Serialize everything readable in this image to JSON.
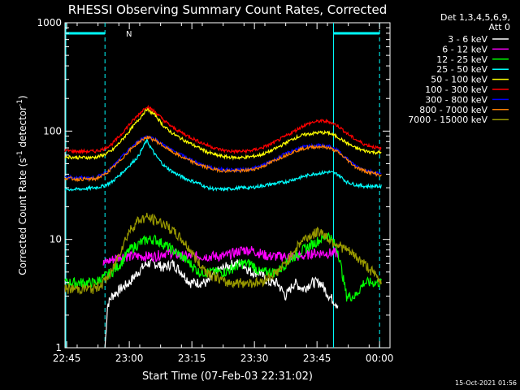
{
  "chart_data": {
    "type": "line",
    "title": "RHESSI Observing Summary Count Rates, Corrected",
    "xlabel": "Start Time (07-Feb-03 22:31:02)",
    "ylabel_main": "Corrected Count Rate (s",
    "ylabel_sup1": "-1",
    "ylabel_mid": " detector",
    "ylabel_sup2": "-1",
    "ylabel_end": ")",
    "yscale": "log",
    "ylim": [
      1,
      1000
    ],
    "xlim_minutes": [
      22.6,
      60.0
    ],
    "x_tick_labels": [
      "22:45",
      "23:00",
      "23:15",
      "23:30",
      "23:45",
      "00:00"
    ],
    "x_tick_minutes": [
      22.8,
      30.0,
      37.2,
      44.4,
      51.6,
      58.8
    ],
    "y_tick_labels": [
      "1",
      "10",
      "100",
      "1000"
    ],
    "y_tick_values": [
      1,
      10,
      100,
      1000
    ],
    "legend_header": [
      "Det 1,3,4,5,6,9,",
      "Att 0"
    ],
    "legend_placement": "top-right",
    "timestamp": "15-Oct-2021 01:56",
    "annotation_marker": "N",
    "night_intervals": [
      [
        22.6,
        27.2
      ],
      [
        53.5,
        58.8
      ]
    ],
    "vertical_lines": [
      {
        "minute": 27.2,
        "style": "dashed"
      },
      {
        "minute": 53.5,
        "style": "solid"
      },
      {
        "minute": 58.8,
        "style": "dashed"
      }
    ],
    "series": [
      {
        "name": "3 - 6 keV",
        "color": "#ffffff",
        "x": [
          27.2,
          27.5,
          28.0,
          29.0,
          30.0,
          31.0,
          32.0,
          33.0,
          34.0,
          35.0,
          36.0,
          37.0,
          38.0,
          39.0,
          40.0,
          41.0,
          42.0,
          43.0,
          44.0,
          45.0,
          46.0,
          47.0,
          48.0,
          49.0,
          50.0,
          51.0,
          52.0,
          53.0,
          54.0
        ],
        "y": [
          1,
          2.5,
          3,
          3.5,
          4,
          5,
          6,
          6,
          5.5,
          6,
          5,
          4,
          4,
          4,
          5,
          5.5,
          6,
          6,
          5,
          5,
          4,
          4,
          3,
          4,
          3.5,
          4,
          4,
          3,
          2.5
        ]
      },
      {
        "name": "6 - 12 keV",
        "color": "#ff00ff",
        "x": [
          27.0,
          28.0,
          29.0,
          30.0,
          31.0,
          32.0,
          33.0,
          34.0,
          35.0,
          36.0,
          37.0,
          38.0,
          39.0,
          40.0,
          41.0,
          42.0,
          43.0,
          44.0,
          45.0,
          46.0,
          47.0,
          48.0,
          49.0,
          50.0,
          51.0,
          52.0,
          53.0,
          54.0
        ],
        "y": [
          6,
          6.5,
          7,
          7,
          7,
          7,
          7,
          7.5,
          7.5,
          7,
          7,
          7,
          7,
          7,
          7,
          7.5,
          8,
          8,
          7.5,
          7,
          7,
          7,
          7,
          7,
          7.5,
          7.5,
          7.5,
          7.5
        ]
      },
      {
        "name": "12 - 25 keV",
        "color": "#00ff00",
        "x": [
          22.6,
          24.0,
          26.0,
          28.0,
          29.0,
          30.0,
          31.0,
          32.0,
          33.0,
          34.0,
          35.0,
          36.0,
          37.0,
          38.0,
          39.0,
          40.0,
          41.0,
          42.0,
          43.0,
          44.0,
          45.0,
          46.0,
          47.0,
          48.0,
          49.0,
          50.0,
          51.0,
          52.0,
          53.0,
          54.0,
          55.0,
          56.0,
          57.0,
          58.0,
          59.0
        ],
        "y": [
          4,
          4,
          4,
          5,
          6,
          8,
          9,
          10,
          10,
          9,
          8,
          7,
          6,
          5,
          5,
          5,
          5,
          5.5,
          6,
          6,
          5,
          5,
          5,
          6,
          7,
          8,
          9,
          10,
          11,
          8,
          3,
          3,
          4,
          4,
          4
        ]
      },
      {
        "name": "25 - 50 keV",
        "color": "#00ffff",
        "x": [
          22.6,
          24.0,
          26.0,
          27.0,
          28.0,
          29.0,
          30.0,
          31.0,
          32.0,
          33.0,
          34.0,
          35.0,
          36.0,
          37.0,
          38.0,
          39.0,
          40.0,
          41.0,
          42.0,
          43.0,
          44.0,
          45.0,
          46.0,
          47.0,
          48.0,
          49.0,
          50.0,
          51.0,
          52.0,
          53.0,
          54.0,
          55.0,
          56.0,
          57.0,
          58.0,
          59.0
        ],
        "y": [
          29,
          29,
          30,
          31,
          34,
          40,
          48,
          58,
          82,
          60,
          48,
          42,
          38,
          35,
          33,
          30,
          29,
          29,
          29.5,
          30,
          30,
          31,
          32,
          33,
          34,
          36,
          38,
          40,
          41,
          42,
          40,
          34,
          32,
          31,
          31,
          31
        ]
      },
      {
        "name": "50 - 100 keV",
        "color": "#ffff00",
        "x": [
          22.6,
          24.0,
          26.0,
          27.0,
          28.0,
          29.0,
          30.0,
          31.0,
          32.0,
          33.0,
          34.0,
          35.0,
          36.0,
          37.0,
          38.0,
          39.0,
          40.0,
          41.0,
          42.0,
          43.0,
          44.0,
          45.0,
          46.0,
          47.0,
          48.0,
          49.0,
          50.0,
          51.0,
          52.0,
          53.0,
          54.0,
          55.0,
          56.0,
          57.0,
          58.0,
          59.0
        ],
        "y": [
          58,
          57,
          57,
          60,
          66,
          80,
          100,
          125,
          160,
          140,
          110,
          95,
          85,
          77,
          70,
          64,
          60,
          58,
          57,
          57,
          58,
          60,
          64,
          70,
          78,
          86,
          92,
          95,
          97,
          96,
          88,
          78,
          70,
          66,
          64,
          63
        ]
      },
      {
        "name": "100 - 300 keV",
        "color": "#ff0000",
        "x": [
          22.6,
          24.0,
          26.0,
          27.0,
          28.0,
          29.0,
          30.0,
          31.0,
          32.0,
          33.0,
          34.0,
          35.0,
          36.0,
          37.0,
          38.0,
          39.0,
          40.0,
          41.0,
          42.0,
          43.0,
          44.0,
          45.0,
          46.0,
          47.0,
          48.0,
          49.0,
          50.0,
          51.0,
          52.0,
          53.0,
          54.0,
          55.0,
          56.0,
          57.0,
          58.0,
          59.0
        ],
        "y": [
          66,
          65,
          65,
          68,
          76,
          92,
          115,
          140,
          170,
          150,
          125,
          108,
          97,
          88,
          80,
          74,
          69,
          66,
          65,
          65,
          66,
          69,
          74,
          81,
          90,
          100,
          112,
          120,
          124,
          122,
          112,
          96,
          84,
          76,
          72,
          68
        ]
      },
      {
        "name": "300 - 800 keV",
        "color": "#0000ff",
        "x": [
          22.6,
          24.0,
          26.0,
          27.0,
          28.0,
          29.0,
          30.0,
          31.0,
          32.0,
          33.0,
          34.0,
          35.0,
          36.0,
          37.0,
          38.0,
          39.0,
          40.0,
          41.0,
          42.0,
          43.0,
          44.0,
          45.0,
          46.0,
          47.0,
          48.0,
          49.0,
          50.0,
          51.0,
          52.0,
          53.0,
          54.0,
          55.0,
          56.0,
          57.0,
          58.0,
          59.0
        ],
        "y": [
          38,
          37,
          37,
          40,
          46,
          56,
          68,
          80,
          90,
          84,
          74,
          66,
          60,
          55,
          50,
          47,
          45,
          44,
          44,
          44,
          45,
          47,
          51,
          56,
          62,
          67,
          71,
          73,
          74,
          72,
          66,
          56,
          48,
          44,
          42,
          40
        ]
      },
      {
        "name": "800 - 7000 keV",
        "color": "#ff8000",
        "x": [
          22.6,
          24.0,
          26.0,
          27.0,
          28.0,
          29.0,
          30.0,
          31.0,
          32.0,
          33.0,
          34.0,
          35.0,
          36.0,
          37.0,
          38.0,
          39.0,
          40.0,
          41.0,
          42.0,
          43.0,
          44.0,
          45.0,
          46.0,
          47.0,
          48.0,
          49.0,
          50.0,
          51.0,
          52.0,
          53.0,
          54.0,
          55.0,
          56.0,
          57.0,
          58.0,
          59.0
        ],
        "y": [
          37,
          36,
          36,
          39,
          45,
          54,
          66,
          78,
          88,
          82,
          72,
          64,
          58,
          53,
          49,
          46,
          44,
          43,
          43,
          43,
          44,
          46,
          50,
          55,
          60,
          65,
          69,
          71,
          72,
          70,
          64,
          55,
          47,
          43,
          41,
          39
        ]
      },
      {
        "name": "7000 - 15000 keV",
        "color": "#999900",
        "x": [
          22.6,
          24.0,
          26.0,
          27.0,
          28.0,
          29.0,
          30.0,
          31.0,
          32.0,
          33.0,
          34.0,
          35.0,
          36.0,
          37.0,
          38.0,
          39.0,
          40.0,
          41.0,
          42.0,
          43.0,
          44.0,
          45.0,
          46.0,
          47.0,
          48.0,
          49.0,
          50.0,
          51.0,
          52.0,
          53.0,
          54.0,
          55.0,
          56.0,
          57.0,
          58.0,
          59.0
        ],
        "y": [
          3.5,
          3.5,
          3.5,
          4,
          5,
          8,
          12,
          15,
          16,
          15,
          14,
          12,
          10,
          8,
          6,
          5,
          4.5,
          4,
          4,
          4,
          4,
          4,
          4.5,
          5,
          6,
          8,
          10,
          11,
          12,
          10,
          9,
          8,
          7,
          6,
          5,
          4
        ]
      }
    ]
  }
}
